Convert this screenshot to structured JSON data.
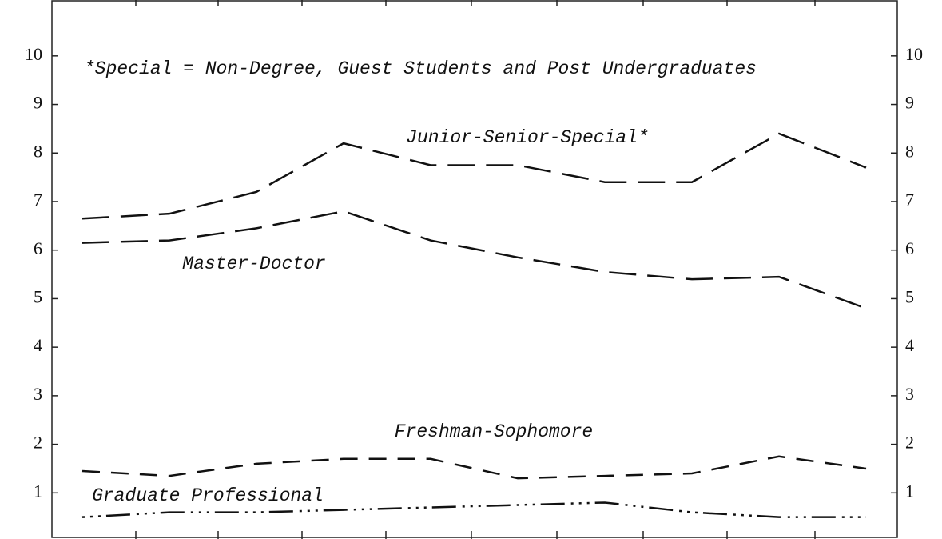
{
  "chart_data": {
    "type": "line",
    "annotation": "*Special = Non-Degree, Guest Students and Post Undergraduates",
    "categories": [
      null,
      null,
      null,
      null,
      null,
      null,
      null,
      null,
      null,
      null
    ],
    "series": [
      {
        "name": "Junior-Senior-Special*",
        "color": "#111111",
        "values": [
          6.65,
          6.75,
          7.2,
          8.2,
          7.75,
          7.75,
          7.4,
          7.4,
          8.4,
          7.7
        ]
      },
      {
        "name": "Master-Doctor",
        "color": "#111111",
        "values": [
          6.15,
          6.2,
          6.45,
          6.8,
          6.2,
          5.85,
          5.55,
          5.4,
          5.45,
          4.8
        ]
      },
      {
        "name": "Freshman-Sophomore",
        "color": "#111111",
        "values": [
          1.45,
          1.35,
          1.6,
          1.7,
          1.7,
          1.3,
          1.35,
          1.4,
          1.75,
          1.5
        ]
      },
      {
        "name": "Graduate Professional",
        "color": "#111111",
        "values": [
          0.5,
          0.6,
          0.6,
          0.65,
          0.7,
          0.75,
          0.8,
          0.6,
          0.5,
          0.5
        ]
      }
    ],
    "ylim": [
      0.05,
      11.15
    ],
    "yticks": [
      1,
      2,
      3,
      4,
      5,
      6,
      7,
      8,
      9,
      10
    ]
  }
}
